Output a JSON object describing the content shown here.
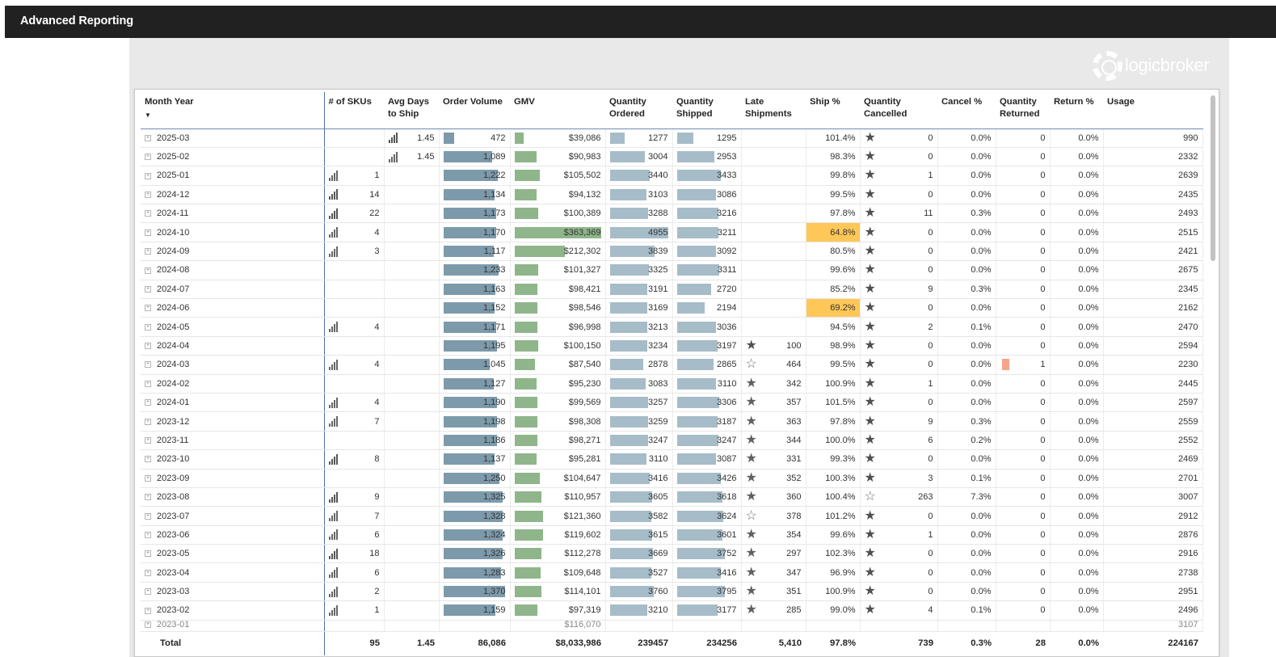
{
  "app": {
    "title": "Advanced Reporting"
  },
  "logo": {
    "text": "logicbroker"
  },
  "colors": {
    "order_bar": "#7d9aab",
    "gmv_bar": "#8fb58a",
    "qty_bar": "#a6bcc8",
    "return_bar": "#f4a58a",
    "warn_fill": "#fec757"
  },
  "columns": [
    "Month Year",
    "# of SKUs",
    "Avg Days to Ship",
    "Order Volume",
    "GMV",
    "Quantity Ordered",
    "Quantity Shipped",
    "Late Shipments",
    "Ship %",
    "Quantity Cancelled",
    "Cancel %",
    "Quantity Returned",
    "Return %",
    "Usage"
  ],
  "rows": [
    {
      "month": "2025-03",
      "skus": "",
      "avg": "1.45",
      "avg_icon": "full",
      "ov": "472",
      "ovf": 0.18,
      "gmv": "$39,086",
      "gmvf": 0.11,
      "qo": "1277",
      "qof": 0.26,
      "qs": "1295",
      "qsf": 0.28,
      "late": "",
      "late_icon": "",
      "ship": "101.4%",
      "ship_warn": false,
      "qc": "0",
      "qc_icon": "full",
      "cancel": "0.0%",
      "qr": "0",
      "return": "0.0%",
      "usage": "990"
    },
    {
      "month": "2025-02",
      "skus": "",
      "avg": "1.45",
      "avg_icon": "hollow",
      "ov": "1,089",
      "ovf": 0.78,
      "gmv": "$90,983",
      "gmvf": 0.26,
      "qo": "3004",
      "qof": 0.61,
      "qs": "2953",
      "qsf": 0.63,
      "late": "",
      "late_icon": "",
      "ship": "98.3%",
      "ship_warn": false,
      "qc": "0",
      "qc_icon": "full",
      "cancel": "0.0%",
      "qr": "0",
      "return": "0.0%",
      "usage": "2332"
    },
    {
      "month": "2025-01",
      "skus": "1",
      "skus_icon": "hollow",
      "avg": "",
      "ov": "1,222",
      "ovf": 0.88,
      "gmv": "$105,502",
      "gmvf": 0.29,
      "qo": "3440",
      "qof": 0.69,
      "qs": "3433",
      "qsf": 0.73,
      "late": "",
      "late_icon": "",
      "ship": "99.8%",
      "ship_warn": false,
      "qc": "1",
      "qc_icon": "full",
      "cancel": "0.0%",
      "qr": "0",
      "return": "0.0%",
      "usage": "2639"
    },
    {
      "month": "2024-12",
      "skus": "14",
      "skus_icon": "full",
      "avg": "",
      "ov": "1,134",
      "ovf": 0.82,
      "gmv": "$94,132",
      "gmvf": 0.26,
      "qo": "3103",
      "qof": 0.63,
      "qs": "3086",
      "qsf": 0.66,
      "late": "",
      "late_icon": "",
      "ship": "99.5%",
      "ship_warn": false,
      "qc": "0",
      "qc_icon": "full",
      "cancel": "0.0%",
      "qr": "0",
      "return": "0.0%",
      "usage": "2435"
    },
    {
      "month": "2024-11",
      "skus": "22",
      "skus_icon": "full",
      "avg": "",
      "ov": "1,173",
      "ovf": 0.85,
      "gmv": "$100,389",
      "gmvf": 0.28,
      "qo": "3288",
      "qof": 0.66,
      "qs": "3216",
      "qsf": 0.69,
      "late": "",
      "late_icon": "",
      "ship": "97.8%",
      "ship_warn": false,
      "qc": "11",
      "qc_icon": "full",
      "cancel": "0.3%",
      "qr": "0",
      "return": "0.0%",
      "usage": "2493"
    },
    {
      "month": "2024-10",
      "skus": "4",
      "skus_icon": "hollow",
      "avg": "",
      "ov": "1,170",
      "ovf": 0.85,
      "gmv": "$363,369",
      "gmvf": 1.0,
      "qo": "4955",
      "qof": 1.0,
      "qs": "3211",
      "qsf": 0.69,
      "late": "",
      "late_icon": "",
      "ship": "64.8%",
      "ship_warn": true,
      "qc": "0",
      "qc_icon": "full",
      "cancel": "0.0%",
      "qr": "0",
      "return": "0.0%",
      "usage": "2515"
    },
    {
      "month": "2024-09",
      "skus": "3",
      "skus_icon": "hollow",
      "avg": "",
      "ov": "1,117",
      "ovf": 0.81,
      "gmv": "$212,302",
      "gmvf": 0.58,
      "qo": "3839",
      "qof": 0.77,
      "qs": "3092",
      "qsf": 0.66,
      "late": "",
      "late_icon": "",
      "ship": "80.5%",
      "ship_warn": false,
      "qc": "0",
      "qc_icon": "full",
      "cancel": "0.0%",
      "qr": "0",
      "return": "0.0%",
      "usage": "2421"
    },
    {
      "month": "2024-08",
      "skus": "",
      "avg": "",
      "ov": "1,233",
      "ovf": 0.89,
      "gmv": "$101,327",
      "gmvf": 0.28,
      "qo": "3325",
      "qof": 0.67,
      "qs": "3311",
      "qsf": 0.71,
      "late": "",
      "late_icon": "",
      "ship": "99.6%",
      "ship_warn": false,
      "qc": "0",
      "qc_icon": "full",
      "cancel": "0.0%",
      "qr": "0",
      "return": "0.0%",
      "usage": "2675"
    },
    {
      "month": "2024-07",
      "skus": "",
      "avg": "",
      "ov": "1,163",
      "ovf": 0.84,
      "gmv": "$98,421",
      "gmvf": 0.27,
      "qo": "3191",
      "qof": 0.64,
      "qs": "2720",
      "qsf": 0.58,
      "late": "",
      "late_icon": "",
      "ship": "85.2%",
      "ship_warn": false,
      "qc": "9",
      "qc_icon": "full",
      "cancel": "0.3%",
      "qr": "0",
      "return": "0.0%",
      "usage": "2345"
    },
    {
      "month": "2024-06",
      "skus": "",
      "avg": "",
      "ov": "1,152",
      "ovf": 0.83,
      "gmv": "$98,546",
      "gmvf": 0.27,
      "qo": "3169",
      "qof": 0.64,
      "qs": "2194",
      "qsf": 0.47,
      "late": "",
      "late_icon": "",
      "ship": "69.2%",
      "ship_warn": true,
      "qc": "0",
      "qc_icon": "full",
      "cancel": "0.0%",
      "qr": "0",
      "return": "0.0%",
      "usage": "2162"
    },
    {
      "month": "2024-05",
      "skus": "4",
      "skus_icon": "hollow",
      "avg": "",
      "ov": "1,171",
      "ovf": 0.85,
      "gmv": "$96,998",
      "gmvf": 0.27,
      "qo": "3213",
      "qof": 0.65,
      "qs": "3036",
      "qsf": 0.65,
      "late": "",
      "late_icon": "",
      "ship": "94.5%",
      "ship_warn": false,
      "qc": "2",
      "qc_icon": "full",
      "cancel": "0.1%",
      "qr": "0",
      "return": "0.0%",
      "usage": "2470"
    },
    {
      "month": "2024-04",
      "skus": "",
      "avg": "",
      "ov": "1,195",
      "ovf": 0.86,
      "gmv": "$100,150",
      "gmvf": 0.28,
      "qo": "3234",
      "qof": 0.65,
      "qs": "3197",
      "qsf": 0.68,
      "late": "100",
      "late_icon": "full",
      "ship": "98.9%",
      "ship_warn": false,
      "qc": "0",
      "qc_icon": "full",
      "cancel": "0.0%",
      "qr": "0",
      "return": "0.0%",
      "usage": "2594"
    },
    {
      "month": "2024-03",
      "skus": "4",
      "skus_icon": "hollow",
      "avg": "",
      "ov": "1,045",
      "ovf": 0.75,
      "gmv": "$87,540",
      "gmvf": 0.24,
      "qo": "2878",
      "qof": 0.58,
      "qs": "2865",
      "qsf": 0.61,
      "late": "464",
      "late_icon": "empty",
      "ship": "99.5%",
      "ship_warn": false,
      "qc": "0",
      "qc_icon": "full",
      "cancel": "0.0%",
      "qr": "1",
      "qr_bar": true,
      "return": "0.0%",
      "usage": "2230"
    },
    {
      "month": "2024-02",
      "skus": "",
      "avg": "",
      "ov": "1,127",
      "ovf": 0.81,
      "gmv": "$95,230",
      "gmvf": 0.26,
      "qo": "3083",
      "qof": 0.62,
      "qs": "3110",
      "qsf": 0.66,
      "late": "342",
      "late_icon": "half",
      "ship": "100.9%",
      "ship_warn": false,
      "qc": "1",
      "qc_icon": "full",
      "cancel": "0.0%",
      "qr": "0",
      "return": "0.0%",
      "usage": "2445"
    },
    {
      "month": "2024-01",
      "skus": "4",
      "skus_icon": "hollow",
      "avg": "",
      "ov": "1,190",
      "ovf": 0.86,
      "gmv": "$99,569",
      "gmvf": 0.27,
      "qo": "3257",
      "qof": 0.66,
      "qs": "3306",
      "qsf": 0.71,
      "late": "357",
      "late_icon": "half",
      "ship": "101.5%",
      "ship_warn": false,
      "qc": "0",
      "qc_icon": "full",
      "cancel": "0.0%",
      "qr": "0",
      "return": "0.0%",
      "usage": "2597"
    },
    {
      "month": "2023-12",
      "skus": "7",
      "skus_icon": "hollow",
      "avg": "",
      "ov": "1,198",
      "ovf": 0.86,
      "gmv": "$98,308",
      "gmvf": 0.27,
      "qo": "3259",
      "qof": 0.66,
      "qs": "3187",
      "qsf": 0.68,
      "late": "363",
      "late_icon": "half",
      "ship": "97.8%",
      "ship_warn": false,
      "qc": "9",
      "qc_icon": "full",
      "cancel": "0.3%",
      "qr": "0",
      "return": "0.0%",
      "usage": "2559"
    },
    {
      "month": "2023-11",
      "skus": "",
      "avg": "",
      "ov": "1,186",
      "ovf": 0.86,
      "gmv": "$98,271",
      "gmvf": 0.27,
      "qo": "3247",
      "qof": 0.66,
      "qs": "3247",
      "qsf": 0.69,
      "late": "344",
      "late_icon": "half",
      "ship": "100.0%",
      "ship_warn": false,
      "qc": "6",
      "qc_icon": "full",
      "cancel": "0.2%",
      "qr": "0",
      "return": "0.0%",
      "usage": "2552"
    },
    {
      "month": "2023-10",
      "skus": "8",
      "skus_icon": "full",
      "avg": "",
      "ov": "1,137",
      "ovf": 0.82,
      "gmv": "$95,281",
      "gmvf": 0.26,
      "qo": "3110",
      "qof": 0.63,
      "qs": "3087",
      "qsf": 0.66,
      "late": "331",
      "late_icon": "half",
      "ship": "99.3%",
      "ship_warn": false,
      "qc": "0",
      "qc_icon": "full",
      "cancel": "0.0%",
      "qr": "0",
      "return": "0.0%",
      "usage": "2469"
    },
    {
      "month": "2023-09",
      "skus": "",
      "avg": "",
      "ov": "1,250",
      "ovf": 0.9,
      "gmv": "$104,647",
      "gmvf": 0.29,
      "qo": "3416",
      "qof": 0.69,
      "qs": "3426",
      "qsf": 0.73,
      "late": "352",
      "late_icon": "half",
      "ship": "100.3%",
      "ship_warn": false,
      "qc": "3",
      "qc_icon": "full",
      "cancel": "0.1%",
      "qr": "0",
      "return": "0.0%",
      "usage": "2701"
    },
    {
      "month": "2023-08",
      "skus": "9",
      "skus_icon": "full",
      "avg": "",
      "ov": "1,325",
      "ovf": 0.96,
      "gmv": "$110,957",
      "gmvf": 0.31,
      "qo": "3605",
      "qof": 0.73,
      "qs": "3618",
      "qsf": 0.77,
      "late": "360",
      "late_icon": "half",
      "ship": "100.4%",
      "ship_warn": false,
      "qc": "263",
      "qc_icon": "empty",
      "cancel": "7.3%",
      "qr": "0",
      "return": "0.0%",
      "usage": "3007"
    },
    {
      "month": "2023-07",
      "skus": "7",
      "skus_icon": "hollow",
      "avg": "",
      "ov": "1,328",
      "ovf": 0.96,
      "gmv": "$121,360",
      "gmvf": 0.33,
      "qo": "3582",
      "qof": 0.72,
      "qs": "3624",
      "qsf": 0.78,
      "late": "378",
      "late_icon": "empty",
      "ship": "101.2%",
      "ship_warn": false,
      "qc": "0",
      "qc_icon": "full",
      "cancel": "0.0%",
      "qr": "0",
      "return": "0.0%",
      "usage": "2912"
    },
    {
      "month": "2023-06",
      "skus": "6",
      "skus_icon": "hollow",
      "avg": "",
      "ov": "1,324",
      "ovf": 0.96,
      "gmv": "$119,602",
      "gmvf": 0.33,
      "qo": "3615",
      "qof": 0.73,
      "qs": "3601",
      "qsf": 0.77,
      "late": "354",
      "late_icon": "half",
      "ship": "99.6%",
      "ship_warn": false,
      "qc": "1",
      "qc_icon": "full",
      "cancel": "0.0%",
      "qr": "0",
      "return": "0.0%",
      "usage": "2876"
    },
    {
      "month": "2023-05",
      "skus": "18",
      "skus_icon": "full",
      "avg": "",
      "ov": "1,326",
      "ovf": 0.96,
      "gmv": "$112,278",
      "gmvf": 0.31,
      "qo": "3669",
      "qof": 0.74,
      "qs": "3752",
      "qsf": 0.8,
      "late": "297",
      "late_icon": "half",
      "ship": "102.3%",
      "ship_warn": false,
      "qc": "0",
      "qc_icon": "full",
      "cancel": "0.0%",
      "qr": "0",
      "return": "0.0%",
      "usage": "2916"
    },
    {
      "month": "2023-04",
      "skus": "6",
      "skus_icon": "hollow",
      "avg": "",
      "ov": "1,283",
      "ovf": 0.93,
      "gmv": "$109,648",
      "gmvf": 0.3,
      "qo": "3527",
      "qof": 0.71,
      "qs": "3416",
      "qsf": 0.73,
      "late": "347",
      "late_icon": "half",
      "ship": "96.9%",
      "ship_warn": false,
      "qc": "0",
      "qc_icon": "full",
      "cancel": "0.0%",
      "qr": "0",
      "return": "0.0%",
      "usage": "2738"
    },
    {
      "month": "2023-03",
      "skus": "2",
      "skus_icon": "hollow",
      "avg": "",
      "ov": "1,370",
      "ovf": 0.99,
      "gmv": "$114,101",
      "gmvf": 0.31,
      "qo": "3760",
      "qof": 0.76,
      "qs": "3795",
      "qsf": 0.81,
      "late": "351",
      "late_icon": "half",
      "ship": "100.9%",
      "ship_warn": false,
      "qc": "0",
      "qc_icon": "full",
      "cancel": "0.0%",
      "qr": "0",
      "return": "0.0%",
      "usage": "2951"
    },
    {
      "month": "2023-02",
      "skus": "1",
      "skus_icon": "hollow",
      "avg": "",
      "ov": "1,159",
      "ovf": 0.84,
      "gmv": "$97,319",
      "gmvf": 0.27,
      "qo": "3210",
      "qof": 0.65,
      "qs": "3177",
      "qsf": 0.68,
      "late": "285",
      "late_icon": "half",
      "ship": "99.0%",
      "ship_warn": false,
      "qc": "4",
      "qc_icon": "full",
      "cancel": "0.1%",
      "qr": "0",
      "return": "0.0%",
      "usage": "2496"
    }
  ],
  "partial_row": {
    "month": "2023-01",
    "gmv": "$116,070",
    "usage": "3107"
  },
  "totals": {
    "label": "Total",
    "skus": "95",
    "avg": "1.45",
    "ov": "86,086",
    "gmv": "$8,033,986",
    "qo": "239457",
    "qs": "234256",
    "late": "5,410",
    "ship": "97.8%",
    "qc": "739",
    "cancel": "0.3%",
    "qr": "28",
    "return": "0.0%",
    "usage": "224167"
  }
}
